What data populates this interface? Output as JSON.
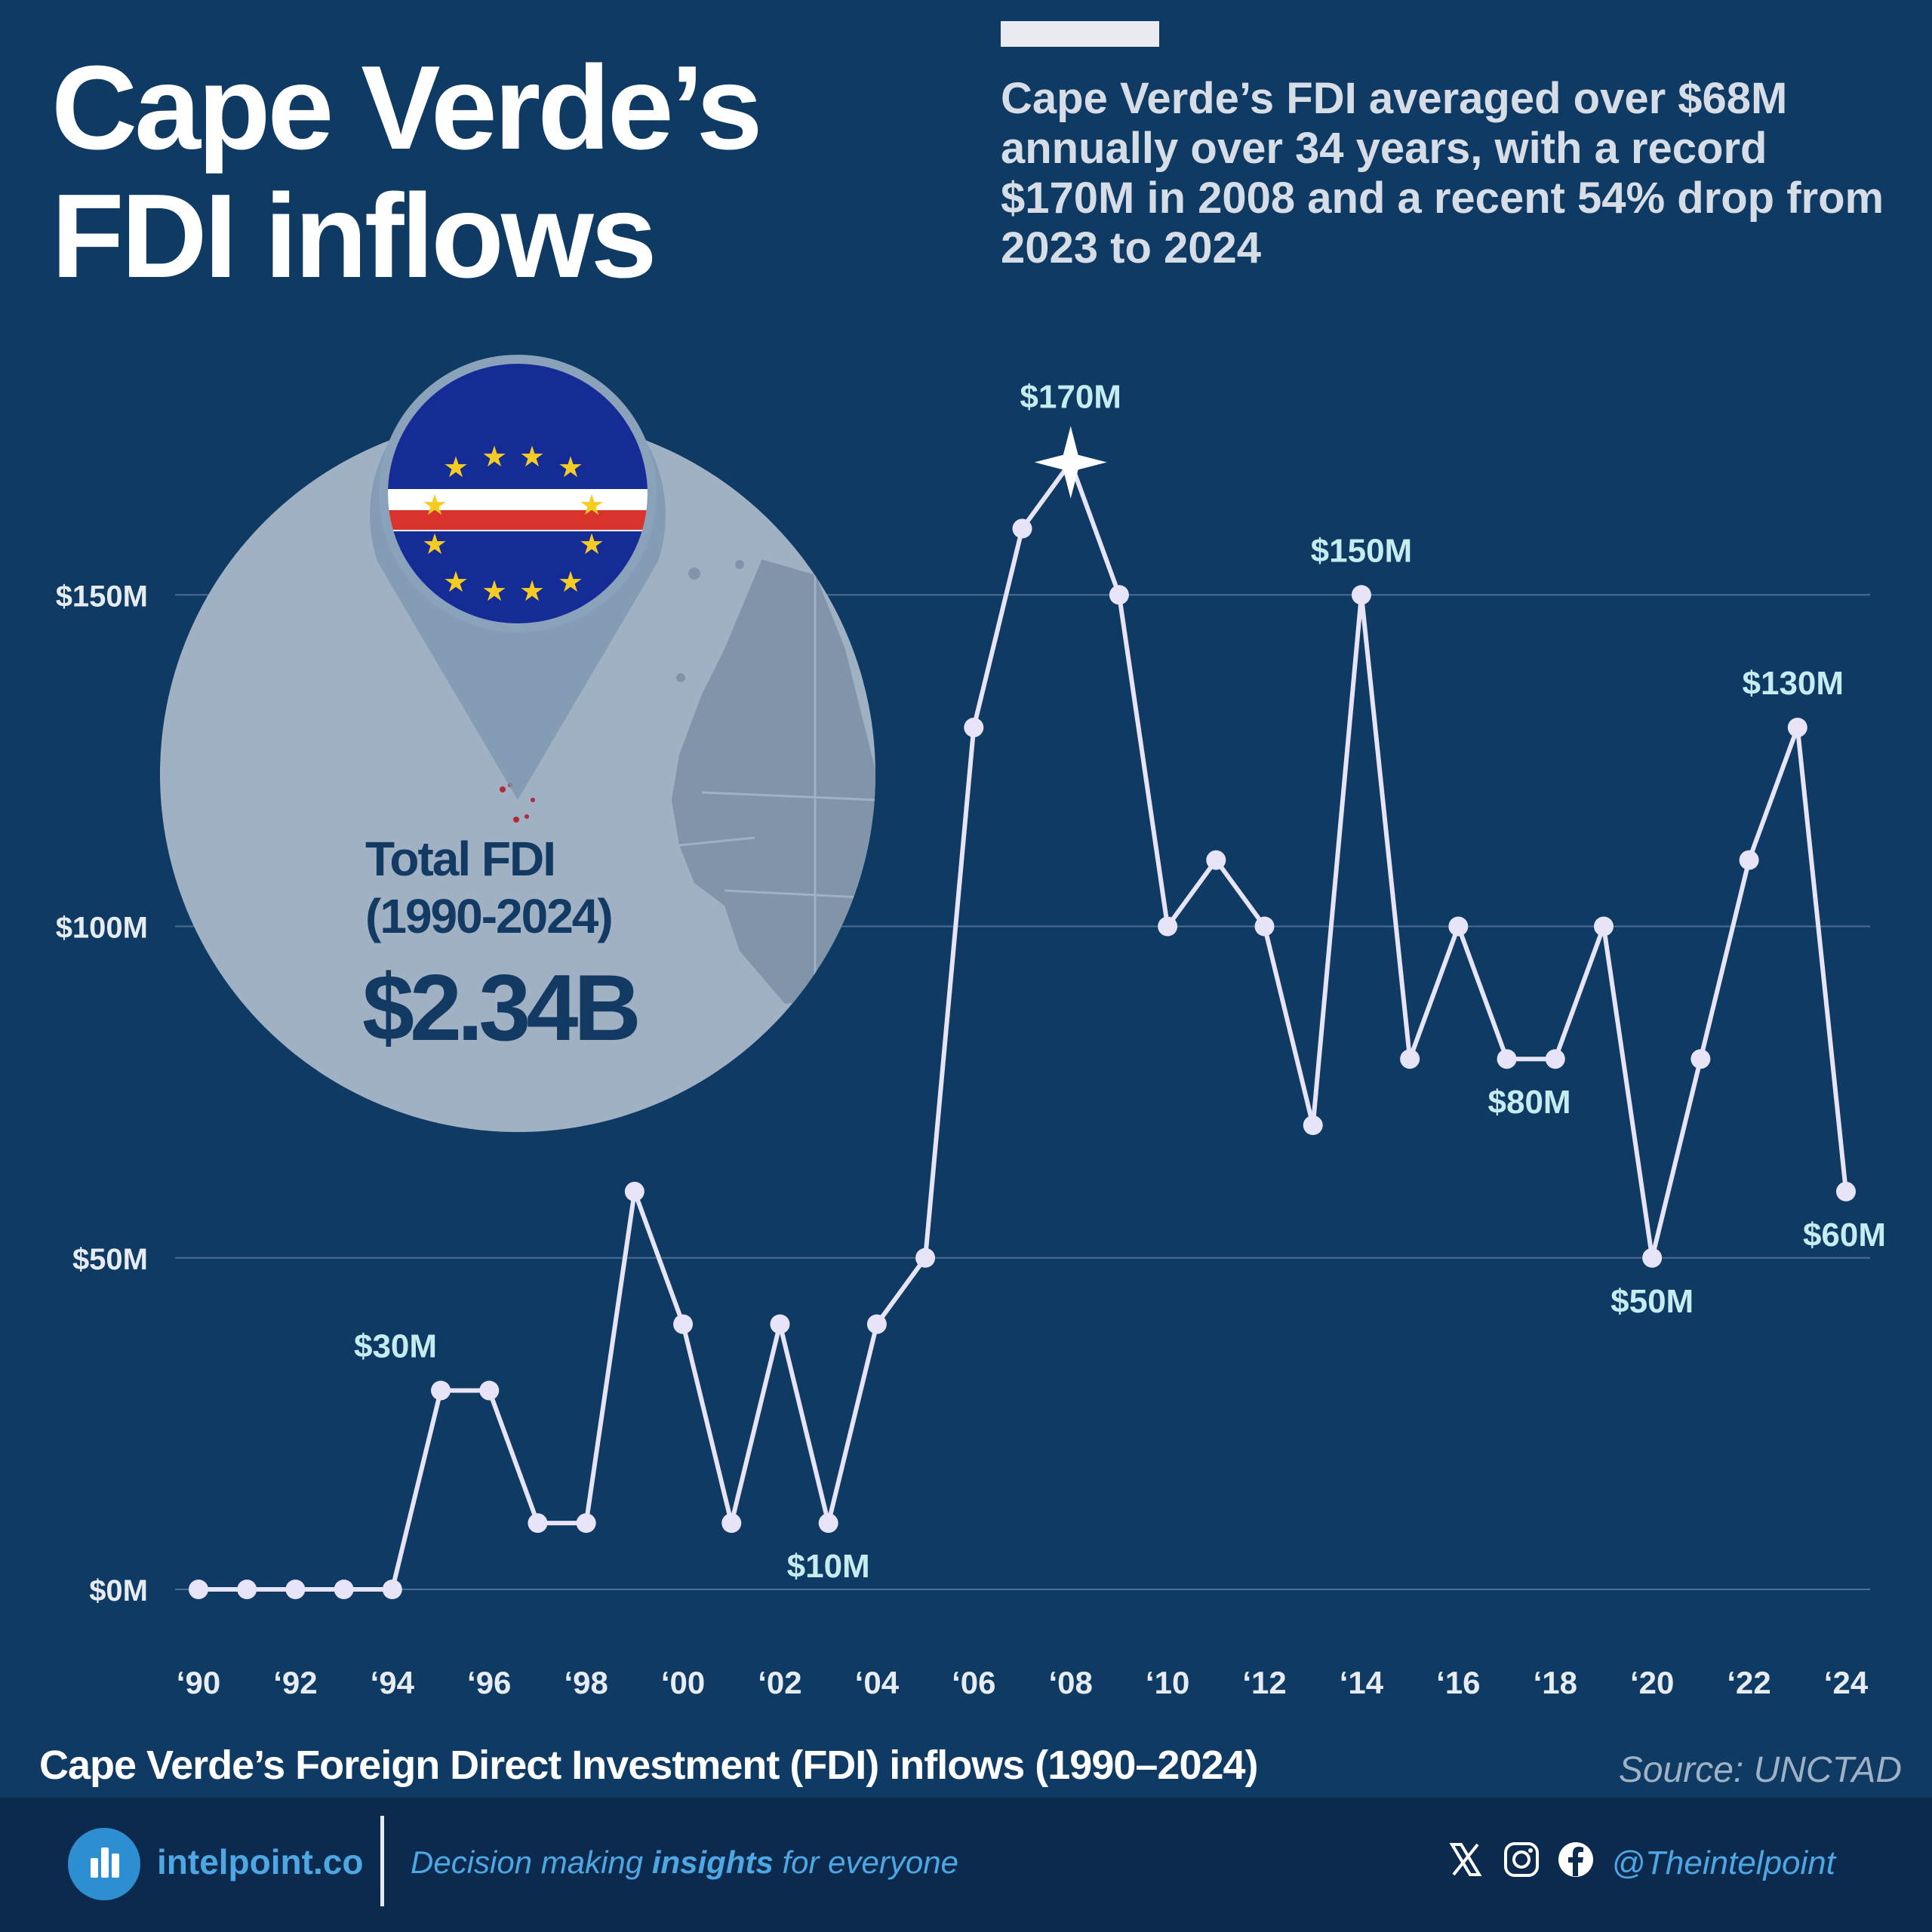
{
  "header": {
    "title_line1": "Cape Verde’s",
    "title_line2": "FDI inflows",
    "subtitle": "Cape Verde’s FDI averaged over $68M annually over 34 years, with a record $170M in 2008 and a recent 54% drop from 2023 to 2024"
  },
  "summary": {
    "label_line1": "Total FDI",
    "label_line2": "(1990-2024)",
    "value": "$2.34B"
  },
  "chart_data": {
    "type": "line",
    "title": "Cape Verde’s Foreign Direct Investment (FDI) inflows (1990–2024)",
    "x": [
      1990,
      1991,
      1992,
      1993,
      1994,
      1995,
      1996,
      1997,
      1998,
      1999,
      2000,
      2001,
      2002,
      2003,
      2004,
      2005,
      2006,
      2007,
      2008,
      2009,
      2010,
      2011,
      2012,
      2013,
      2014,
      2015,
      2016,
      2017,
      2018,
      2019,
      2020,
      2021,
      2022,
      2023,
      2024
    ],
    "y": [
      0,
      0,
      0,
      0,
      0,
      30,
      30,
      10,
      10,
      60,
      40,
      10,
      40,
      10,
      40,
      50,
      130,
      160,
      170,
      150,
      100,
      110,
      100,
      70,
      150,
      80,
      100,
      80,
      80,
      100,
      50,
      80,
      110,
      130,
      60
    ],
    "x_ticks": [
      "‘90",
      "‘92",
      "‘94",
      "‘96",
      "‘98",
      "‘00",
      "‘02",
      "‘04",
      "‘06",
      "‘08",
      "‘10",
      "‘12",
      "‘14",
      "‘16",
      "‘18",
      "‘20",
      "‘22",
      "‘24"
    ],
    "y_ticks": [
      "$0M",
      "$50M",
      "$100M",
      "$150M"
    ],
    "y_tick_values": [
      0,
      50,
      100,
      150
    ],
    "ylim": [
      0,
      170
    ],
    "annotations": [
      {
        "x": 1995,
        "text": "$30M",
        "pos": "above"
      },
      {
        "x": 2003,
        "text": "$10M",
        "pos": "below"
      },
      {
        "x": 2008,
        "text": "$170M",
        "pos": "above"
      },
      {
        "x": 2014,
        "text": "$150M",
        "pos": "above"
      },
      {
        "x": 2017,
        "text": "$80M",
        "pos": "below"
      },
      {
        "x": 2020,
        "text": "$50M",
        "pos": "below"
      },
      {
        "x": 2023,
        "text": "$130M",
        "pos": "above"
      },
      {
        "x": 2024,
        "text": "$60M",
        "pos": "below"
      }
    ],
    "peak_marker": "star",
    "grid": true,
    "colors": {
      "line": "#e6e4f6",
      "grid": "#4b6d91",
      "annotation": "#c5ecf1",
      "tick": "#e6ecf2"
    }
  },
  "footer": {
    "caption": "Cape Verde’s Foreign Direct Investment (FDI) inflows (1990–2024)",
    "source": "Source: UNCTAD",
    "brand": "intelpoint.co",
    "tagline_pre": "Decision making ",
    "tagline_bold": "insights",
    "tagline_post": " for everyone",
    "handle": "@Theintelpoint",
    "social_icons": [
      "x-icon",
      "instagram-icon",
      "facebook-icon"
    ]
  }
}
